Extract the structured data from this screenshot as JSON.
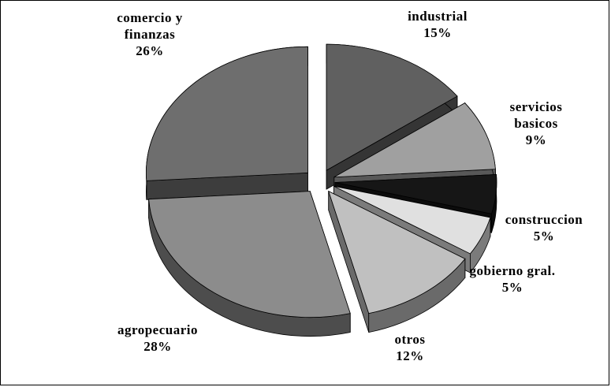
{
  "chart_data": {
    "type": "pie",
    "categories": [
      "industrial",
      "servicios basicos",
      "construccion",
      "gobierno gral.",
      "otros",
      "agropecuario",
      "comercio y finanzas"
    ],
    "values": [
      15,
      9,
      5,
      5,
      12,
      28,
      26
    ],
    "value_labels": [
      "15%",
      "9%",
      "5%",
      "5%",
      "12%",
      "28%",
      "26%"
    ],
    "colors": [
      "#606060",
      "#a0a0a0",
      "#161616",
      "#e0e0e0",
      "#c0c0c0",
      "#8c8c8c",
      "#6e6e6e"
    ]
  }
}
